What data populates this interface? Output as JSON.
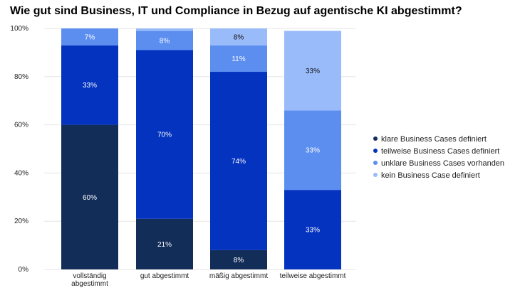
{
  "chart_data": {
    "type": "bar",
    "stacked": true,
    "title": "Wie gut sind Business, IT und Compliance in Bezug auf agentische KI abgestimmt?",
    "categories": [
      [
        "vollständig",
        "abgestimmt"
      ],
      [
        "gut abgestimmt"
      ],
      [
        "mäßig abgestimmt"
      ],
      [
        "teilweise abgestimmt"
      ]
    ],
    "series": [
      {
        "name": "klare Business Cases definiert",
        "color": "#132d59",
        "values": [
          60,
          21,
          8,
          0
        ],
        "labels": [
          "60%",
          "21%",
          "8%",
          ""
        ]
      },
      {
        "name": "teilweise Business Cases definiert",
        "color": "#0433bf",
        "values": [
          33,
          70,
          74,
          33
        ],
        "labels": [
          "33%",
          "70%",
          "74%",
          "33%"
        ]
      },
      {
        "name": "unklare Business Cases vorhanden",
        "color": "#5c8ef0",
        "values": [
          7,
          8,
          11,
          33
        ],
        "labels": [
          "7%",
          "8%",
          "11%",
          "33%"
        ]
      },
      {
        "name": "kein Business Case definiert",
        "color": "#99bbfa",
        "values": [
          0,
          1,
          8,
          33
        ],
        "labels": [
          "",
          "",
          "8%",
          "33%"
        ]
      }
    ],
    "ylim": [
      0,
      100
    ],
    "yticks": [
      "0%",
      "20%",
      "40%",
      "60%",
      "80%",
      "100%"
    ],
    "legend_position": "right",
    "grid": true
  }
}
